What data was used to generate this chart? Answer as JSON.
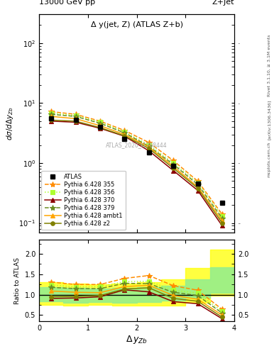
{
  "title_left": "13000 GeV pp",
  "title_right": "Z+Jet",
  "plot_title": "Δ y(jet, Z) (ATLAS Z+b)",
  "watermark": "ATLAS_2020_I1788444",
  "right_label": "Rivet 3.1.10, ≥ 3.1M events",
  "arxiv_label": "[arXiv:1306.3436]",
  "mcplots_label": "mcplots.cern.ch",
  "xlim": [
    0,
    4
  ],
  "ylim_main": [
    0.07,
    300
  ],
  "ylim_ratio": [
    0.35,
    2.35
  ],
  "atlas_x": [
    0.25,
    0.75,
    1.25,
    1.75,
    2.25,
    2.75,
    3.25,
    3.75
  ],
  "atlas_y": [
    5.5,
    5.2,
    4.0,
    2.5,
    1.5,
    0.9,
    0.45,
    0.22
  ],
  "p355_x": [
    0.25,
    0.75,
    1.25,
    1.75,
    2.25,
    2.75,
    3.25,
    3.75
  ],
  "p355_y": [
    7.2,
    6.5,
    5.0,
    3.5,
    2.2,
    1.1,
    0.5,
    0.14
  ],
  "p355_color": "#FF8C00",
  "p355_style": "--",
  "p355_marker": "*",
  "p355_label": "Pythia 6.428 355",
  "p356_x": [
    0.25,
    0.75,
    1.25,
    1.75,
    2.25,
    2.75,
    3.25,
    3.75
  ],
  "p356_y": [
    6.8,
    6.2,
    4.8,
    3.3,
    2.0,
    1.0,
    0.47,
    0.13
  ],
  "p356_color": "#ADFF2F",
  "p356_style": ":",
  "p356_marker": "s",
  "p356_label": "Pythia 6.428 356",
  "p370_x": [
    0.25,
    0.75,
    1.25,
    1.75,
    2.25,
    2.75,
    3.25,
    3.75
  ],
  "p370_y": [
    5.0,
    4.8,
    3.8,
    2.8,
    1.6,
    0.75,
    0.35,
    0.09
  ],
  "p370_color": "#8B0000",
  "p370_style": "-",
  "p370_marker": "^",
  "p370_label": "Pythia 6.428 370",
  "p379_x": [
    0.25,
    0.75,
    1.25,
    1.75,
    2.25,
    2.75,
    3.25,
    3.75
  ],
  "p379_y": [
    6.5,
    6.0,
    4.6,
    3.2,
    1.9,
    0.95,
    0.44,
    0.12
  ],
  "p379_color": "#6B8E23",
  "p379_style": "--",
  "p379_marker": "*",
  "p379_label": "Pythia 6.428 379",
  "pambt1_x": [
    0.25,
    0.75,
    1.25,
    1.75,
    2.25,
    2.75,
    3.25,
    3.75
  ],
  "pambt1_y": [
    6.0,
    5.5,
    4.2,
    3.0,
    1.85,
    0.88,
    0.4,
    0.11
  ],
  "pambt1_color": "#FFA500",
  "pambt1_style": "-",
  "pambt1_marker": "^",
  "pambt1_label": "Pythia 6.428 ambt1",
  "pz2_x": [
    0.25,
    0.75,
    1.25,
    1.75,
    2.25,
    2.75,
    3.25,
    3.75
  ],
  "pz2_y": [
    5.2,
    5.0,
    3.9,
    2.85,
    1.75,
    0.82,
    0.38,
    0.1
  ],
  "pz2_color": "#808000",
  "pz2_style": "-",
  "pz2_marker": "o",
  "pz2_label": "Pythia 6.428 z2",
  "ratio_355": [
    1.31,
    1.25,
    1.25,
    1.4,
    1.47,
    1.22,
    1.11,
    0.64
  ],
  "ratio_356": [
    1.24,
    1.19,
    1.2,
    1.32,
    1.33,
    1.11,
    1.04,
    0.59
  ],
  "ratio_370": [
    0.91,
    0.92,
    0.95,
    1.12,
    1.07,
    0.83,
    0.78,
    0.41
  ],
  "ratio_379": [
    1.18,
    1.15,
    1.15,
    1.28,
    1.27,
    1.06,
    0.98,
    0.55
  ],
  "ratio_ambt1": [
    1.09,
    1.06,
    1.05,
    1.2,
    1.23,
    0.98,
    0.89,
    0.5
  ],
  "ratio_z2": [
    0.95,
    0.96,
    0.98,
    1.14,
    1.17,
    0.91,
    0.84,
    0.45
  ],
  "band_x_edges": [
    0.0,
    0.5,
    1.0,
    1.5,
    2.0,
    2.5,
    3.0,
    3.5,
    4.0
  ],
  "band_yellow_low": [
    0.76,
    0.74,
    0.75,
    0.73,
    0.74,
    0.73,
    0.8,
    0.97
  ],
  "band_yellow_high": [
    1.3,
    1.28,
    1.25,
    1.28,
    1.3,
    1.38,
    1.65,
    2.1
  ],
  "band_green_low": [
    0.83,
    0.81,
    0.82,
    0.8,
    0.82,
    0.85,
    0.93,
    1.05
  ],
  "band_green_high": [
    1.18,
    1.17,
    1.15,
    1.17,
    1.18,
    1.22,
    1.38,
    1.68
  ]
}
